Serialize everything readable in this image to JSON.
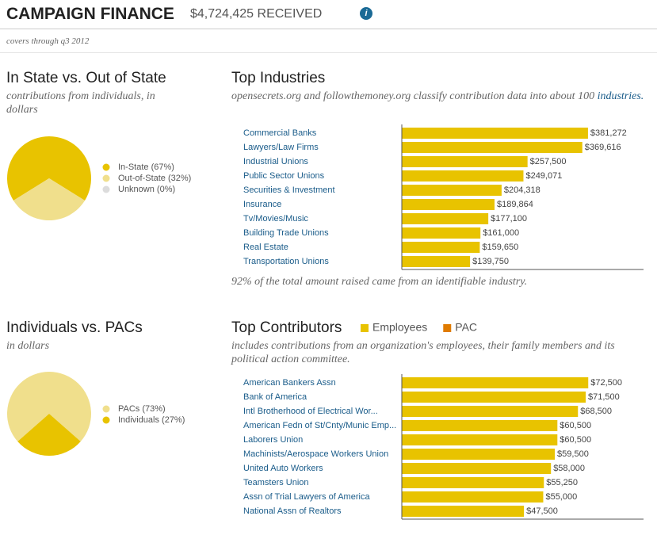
{
  "header": {
    "title": "CAMPAIGN FINANCE",
    "amount": "$4,724,425 RECEIVED",
    "note": "covers through q3 2012"
  },
  "chart_data": [
    {
      "type": "pie",
      "title": "In State vs. Out of State",
      "subtitle": "contributions from individuals, in dollars",
      "categories": [
        "In-State (67%)",
        "Out-of-State (32%)",
        "Unknown (0%)"
      ],
      "values": [
        67,
        32,
        0
      ],
      "colors": [
        "#e8c300",
        "#f0df8c",
        "#dcdcdc"
      ]
    },
    {
      "type": "hbar",
      "title": "Top Industries",
      "subtitle": "opensecrets.org and followthemoney.org classify contribution data into about 100",
      "subtitle_link": "industries.",
      "annotation": "92% of the total amount raised came from an identifiable industry.",
      "categories": [
        "Commercial Banks",
        "Lawyers/Law Firms",
        "Industrial Unions",
        "Public Sector Unions",
        "Securities & Investment",
        "Insurance",
        "Tv/Movies/Music",
        "Building Trade Unions",
        "Real Estate",
        "Transportation Unions"
      ],
      "series": [
        {
          "color": "#e8c300",
          "values": [
            381272,
            369616,
            257500,
            249071,
            204318,
            189864,
            177100,
            161000,
            159650,
            139750
          ],
          "value_labels": [
            "$381,272",
            "$369,616",
            "$257,500",
            "$249,071",
            "$204,318",
            "$189,864",
            "$177,100",
            "$161,000",
            "$159,650",
            "$139,750"
          ]
        }
      ],
      "xlim": [
        0,
        495000
      ]
    },
    {
      "type": "pie",
      "title": "Individuals vs. PACs",
      "subtitle": "in dollars",
      "categories": [
        "PACs (73%)",
        "Individuals (27%)"
      ],
      "values": [
        73,
        27
      ],
      "colors": [
        "#f0df8c",
        "#e8c300"
      ]
    },
    {
      "type": "hbar",
      "title": "Top Contributors",
      "subtitle": "includes contributions from an organization's employees, their family members and its political action committee.",
      "categories": [
        "American Bankers Assn",
        "Bank of America",
        "Intl Brotherhood of Electrical Wor...",
        "American Fedn of St/Cnty/Munic Emp...",
        "Laborers Union",
        "Machinists/Aerospace Workers Union",
        "United Auto Workers",
        "Teamsters Union",
        "Assn of Trial Lawyers of America",
        "National Assn of Realtors"
      ],
      "series": [
        {
          "name": "Employees",
          "color": "#e8c300",
          "values": [
            72500,
            71500,
            68500,
            60500,
            60500,
            59500,
            58000,
            55250,
            55000,
            47500
          ],
          "value_labels": [
            "$72,500",
            "$71,500",
            "$68,500",
            "$60,500",
            "$60,500",
            "$59,500",
            "$58,000",
            "$55,250",
            "$55,000",
            "$47,500"
          ]
        },
        {
          "name": "PAC",
          "color": "#e07b00",
          "values": [
            0,
            0,
            0,
            0,
            0,
            0,
            0,
            0,
            0,
            0
          ]
        }
      ],
      "xlim": [
        0,
        94000
      ]
    }
  ]
}
